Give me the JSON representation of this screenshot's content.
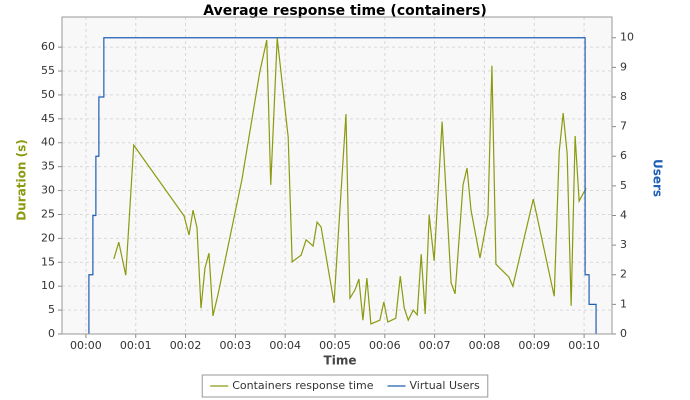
{
  "chart_data": {
    "type": "line",
    "title": "Average response time (containers)",
    "x_label": "Time",
    "y_label": "Duration (s)",
    "y2_label": "Users",
    "xlim": [
      -0.48,
      10.56
    ],
    "ylim": [
      0,
      66.3
    ],
    "y2lim": [
      0,
      10.7
    ],
    "grid": true,
    "legend": "bottom",
    "xticks": [
      {
        "value": 0,
        "label": "00:00"
      },
      {
        "value": 1,
        "label": "00:01"
      },
      {
        "value": 2,
        "label": "00:02"
      },
      {
        "value": 3,
        "label": "00:03"
      },
      {
        "value": 4,
        "label": "00:04"
      },
      {
        "value": 5,
        "label": "00:05"
      },
      {
        "value": 6,
        "label": "00:06"
      },
      {
        "value": 7,
        "label": "00:07"
      },
      {
        "value": 8,
        "label": "00:08"
      },
      {
        "value": 9,
        "label": "00:09"
      },
      {
        "value": 10,
        "label": "00:10"
      }
    ],
    "yticks": [
      0,
      5,
      10,
      15,
      20,
      25,
      30,
      35,
      40,
      45,
      50,
      55,
      60
    ],
    "y2ticks": [
      0,
      1,
      2,
      3,
      4,
      5,
      6,
      7,
      8,
      9,
      10
    ],
    "series": [
      {
        "name": "Containers response time",
        "color": "#8c9a10",
        "x": [
          0.56,
          0.66,
          0.8,
          0.96,
          1.97,
          2.07,
          2.15,
          2.23,
          2.31,
          2.39,
          2.47,
          2.55,
          2.65,
          3.13,
          3.49,
          3.63,
          3.71,
          3.84,
          4.06,
          4.14,
          4.32,
          4.42,
          4.56,
          4.64,
          4.72,
          4.98,
          5.22,
          5.3,
          5.4,
          5.48,
          5.56,
          5.64,
          5.72,
          5.9,
          5.98,
          6.06,
          6.22,
          6.31,
          6.39,
          6.47,
          6.57,
          6.65,
          6.73,
          6.81,
          6.89,
          6.99,
          7.15,
          7.33,
          7.41,
          7.57,
          7.65,
          7.73,
          7.91,
          8.07,
          8.15,
          8.23,
          8.49,
          8.57,
          8.98,
          9.4,
          9.5,
          9.58,
          9.66,
          9.74,
          9.82,
          9.9,
          10.04
        ],
        "values": [
          15.7,
          19.2,
          12.3,
          39.5,
          24.7,
          20.7,
          25.9,
          22.2,
          5.4,
          13.8,
          16.9,
          3.8,
          8.2,
          32.2,
          54.8,
          61.5,
          31.2,
          61.9,
          41.2,
          15.1,
          16.5,
          19.7,
          18.4,
          23.4,
          22.4,
          6.5,
          46.0,
          7.5,
          9.2,
          11.5,
          2.9,
          11.7,
          2.1,
          2.9,
          6.7,
          2.5,
          3.3,
          12.1,
          5.4,
          2.9,
          5.0,
          4.0,
          16.7,
          4.2,
          24.9,
          15.3,
          44.4,
          10.7,
          8.4,
          31.2,
          34.7,
          25.9,
          15.9,
          24.9,
          56.1,
          14.6,
          11.9,
          10.0,
          28.2,
          7.9,
          38.1,
          46.2,
          37.7,
          5.9,
          41.4,
          27.8,
          30.5
        ]
      },
      {
        "name": "Virtual Users",
        "color": "#1f5fb4",
        "axis": "y2",
        "x": [
          0.06,
          0.06,
          0.14,
          0.14,
          0.2,
          0.2,
          0.26,
          0.26,
          0.36,
          0.36,
          10.02,
          10.02,
          10.1,
          10.1,
          10.24,
          10.24
        ],
        "values": [
          0,
          2,
          2,
          4,
          4,
          6,
          6,
          8,
          8,
          10,
          10,
          2,
          2,
          1,
          1,
          0
        ]
      }
    ]
  }
}
